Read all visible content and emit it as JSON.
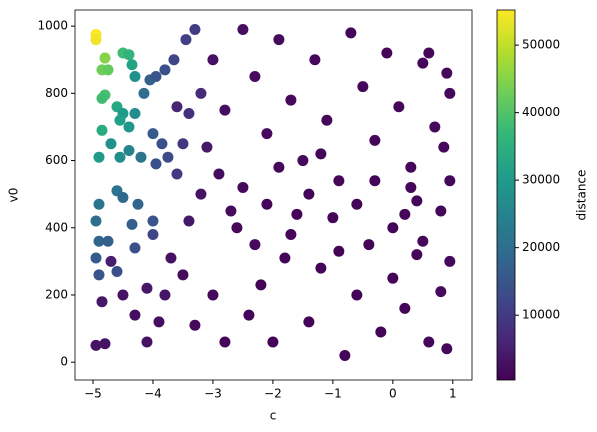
{
  "chart_data": {
    "type": "scatter",
    "xlabel": "c",
    "ylabel": "v0",
    "colorbar_label": "distance",
    "xlim": [
      -5.3,
      1.32
    ],
    "xticks": [
      {
        "value": -5,
        "label": "−5"
      },
      {
        "value": -4,
        "label": "−4"
      },
      {
        "value": -3,
        "label": "−3"
      },
      {
        "value": -2,
        "label": "−2"
      },
      {
        "value": -1,
        "label": "−1"
      },
      0,
      1
    ],
    "ylim": [
      -53,
      1048
    ],
    "yticks": [
      0,
      200,
      400,
      600,
      800,
      1000
    ],
    "clim": [
      400,
      55200
    ],
    "cticks": [
      10000,
      20000,
      30000,
      40000,
      50000
    ],
    "colormap": "viridis",
    "x": [
      -4.95,
      -4.95,
      -4.8,
      -4.85,
      -4.75,
      -4.5,
      -4.4,
      -4.35,
      -4.3,
      -4.8,
      -4.85,
      -4.6,
      -4.5,
      -4.3,
      -4.55,
      -4.4,
      -4.85,
      -4.9,
      -4.7,
      -4.55,
      -4.4,
      -4.2,
      -4.15,
      -4.05,
      -3.95,
      -3.8,
      -3.65,
      -3.45,
      -3.3,
      -4.0,
      -3.85,
      -3.75,
      -3.95,
      -4.9,
      -4.6,
      -4.5,
      -4.25,
      -4.0,
      -4.35,
      -4.95,
      -4.9,
      -4.75,
      -4.95,
      -4.6,
      -4.9,
      -4.3,
      -4.0,
      -3.6,
      -3.5,
      -3.4,
      -3.2,
      -4.95,
      -4.8,
      -4.5,
      -4.3,
      -4.1,
      -4.85,
      -4.7,
      -3.9,
      -3.7,
      -3.5,
      -3.3,
      -3.0,
      -2.8,
      -2.6,
      -2.4,
      -2.2,
      -2.0,
      -1.8,
      -1.6,
      -1.4,
      -1.2,
      -1.0,
      -0.8,
      -0.6,
      -0.4,
      -0.2,
      0.0,
      0.2,
      0.4,
      0.6,
      0.8,
      0.95,
      0.9,
      -3.0,
      -2.8,
      -2.5,
      -2.3,
      -2.1,
      -1.9,
      -1.7,
      -1.5,
      -1.3,
      -1.1,
      -0.9,
      -0.7,
      -0.5,
      -0.3,
      -0.1,
      0.1,
      0.3,
      0.5,
      0.7,
      0.9,
      0.95,
      0.6,
      0.4,
      0.2,
      -3.2,
      -2.9,
      -2.7,
      -2.5,
      -2.3,
      -2.1,
      -1.9,
      -1.7,
      -1.4,
      -1.2,
      -0.9,
      -0.6,
      -0.3,
      0.0,
      0.3,
      0.5,
      0.8,
      0.95,
      0.85,
      -3.6,
      -3.1,
      -3.4,
      -3.8,
      -4.1
    ],
    "values": [
      975,
      960,
      905,
      870,
      870,
      920,
      915,
      885,
      850,
      795,
      785,
      760,
      740,
      740,
      720,
      700,
      690,
      610,
      650,
      610,
      630,
      610,
      800,
      840,
      850,
      870,
      900,
      960,
      990,
      680,
      650,
      610,
      590,
      470,
      510,
      490,
      470,
      420,
      410,
      420,
      360,
      360,
      310,
      270,
      260,
      340,
      380,
      560,
      650,
      740,
      800,
      50,
      55,
      200,
      140,
      220,
      180,
      300,
      120,
      310,
      260,
      110,
      200,
      60,
      400,
      140,
      230,
      60,
      310,
      440,
      120,
      280,
      430,
      20,
      200,
      350,
      90,
      250,
      160,
      320,
      60,
      210,
      300,
      40,
      900,
      750,
      990,
      850,
      680,
      960,
      780,
      600,
      900,
      720,
      540,
      980,
      820,
      660,
      920,
      760,
      580,
      890,
      700,
      860,
      800,
      920,
      480,
      440,
      500,
      560,
      450,
      520,
      350,
      470,
      580,
      380,
      500,
      620,
      330,
      470,
      540,
      400,
      520,
      360,
      450,
      540,
      640,
      760,
      640,
      420,
      200,
      60
    ],
    "colors": [
      56000,
      54000,
      45000,
      43000,
      42000,
      38000,
      36000,
      32000,
      28000,
      39000,
      38000,
      33000,
      30000,
      27000,
      31000,
      29000,
      34000,
      30000,
      28000,
      27000,
      25000,
      22000,
      20000,
      17000,
      15000,
      14000,
      12000,
      11000,
      10000,
      16000,
      14000,
      13000,
      14000,
      22000,
      21000,
      19000,
      18000,
      15000,
      17000,
      20000,
      18000,
      17000,
      16000,
      14000,
      15000,
      14000,
      12000,
      10000,
      9000,
      8000,
      7000,
      3000,
      3000,
      3000,
      2500,
      4000,
      4000,
      5000,
      2500,
      3000,
      2000,
      1500,
      1500,
      1200,
      1500,
      1200,
      1000,
      1000,
      1000,
      1000,
      900,
      900,
      900,
      900,
      900,
      1000,
      1000,
      1100,
      1200,
      1300,
      1400,
      1500,
      1600,
      1500,
      3000,
      2500,
      2500,
      2000,
      1800,
      1800,
      1600,
      1500,
      1500,
      1400,
      1300,
      1300,
      1300,
      1200,
      1300,
      1400,
      1400,
      1500,
      1600,
      1700,
      1700,
      1500,
      1300,
      1200,
      3000,
      2200,
      2000,
      1700,
      1500,
      1400,
      1300,
      1200,
      1100,
      1100,
      1000,
      1000,
      1000,
      1100,
      1200,
      1300,
      1400,
      1600,
      1600,
      6000,
      4000,
      4000,
      3500,
      3000
    ]
  }
}
